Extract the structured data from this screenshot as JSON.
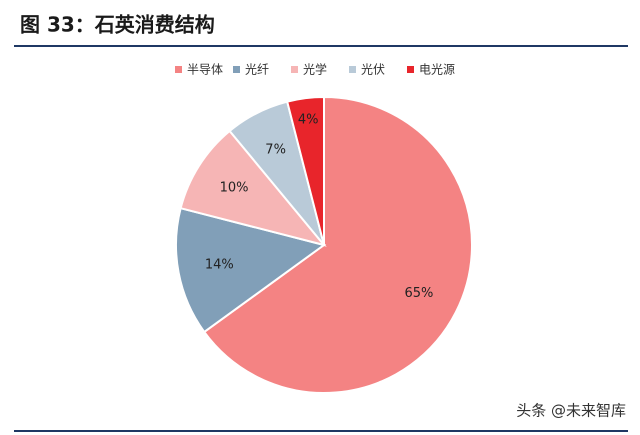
{
  "chart_data": {
    "type": "pie",
    "title": "图 33：石英消费结构",
    "categories": [
      "半导体",
      "光纤",
      "光学",
      "光伏",
      "电光源"
    ],
    "values": [
      65,
      14,
      10,
      7,
      4
    ],
    "value_labels": [
      "65%",
      "14%",
      "10%",
      "7%",
      "4%"
    ],
    "colors": [
      "#f48383",
      "#819fb8",
      "#f6b5b5",
      "#b9cad8",
      "#e8252b"
    ],
    "legend": "top"
  },
  "watermark": "头条 @未来智库"
}
